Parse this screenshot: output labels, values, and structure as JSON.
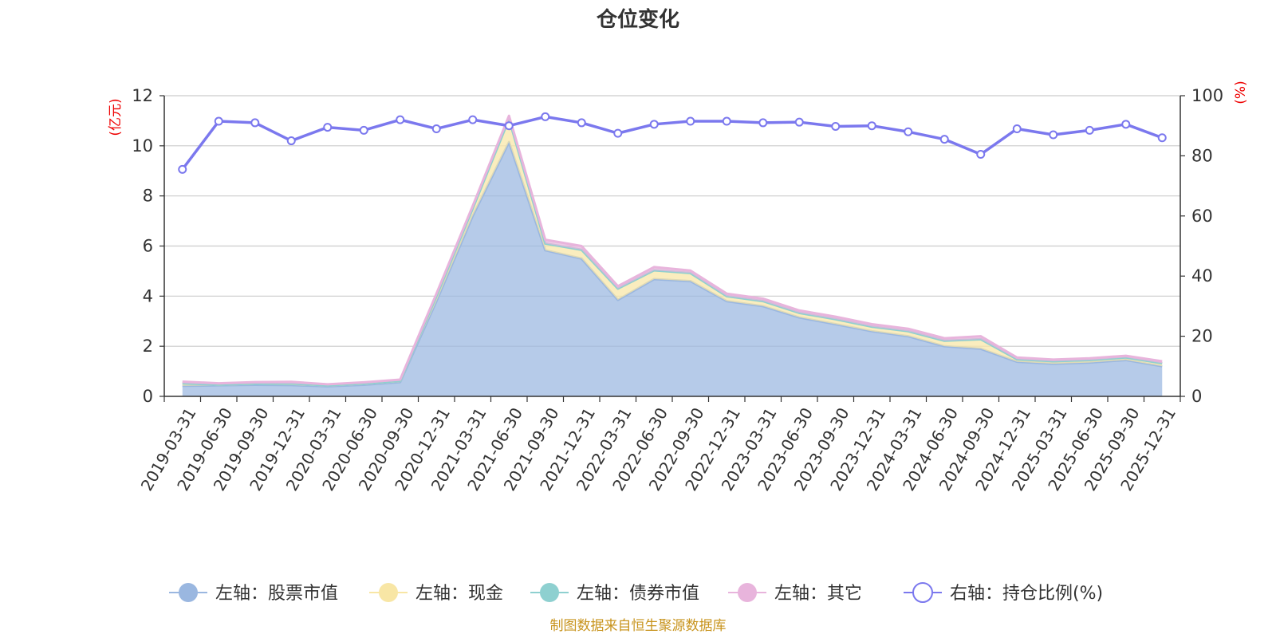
{
  "chart_data": {
    "type": "area",
    "title": "仓位变化",
    "left_axis_unit": "(亿元)",
    "right_axis_unit": "(%)",
    "ylim_left": [
      0,
      12
    ],
    "yticks_left": [
      0,
      2,
      4,
      6,
      8,
      10,
      12
    ],
    "ylim_right": [
      0,
      100
    ],
    "yticks_right": [
      0,
      20,
      40,
      60,
      80,
      100
    ],
    "categories": [
      "2019-03-31",
      "2019-06-30",
      "2019-09-30",
      "2019-12-31",
      "2020-03-31",
      "2020-06-30",
      "2020-09-30",
      "2020-12-31",
      "2021-03-31",
      "2021-06-30",
      "2021-09-30",
      "2021-12-31",
      "2022-03-31",
      "2022-06-30",
      "2022-09-30",
      "2022-12-31",
      "2023-03-31",
      "2023-06-30",
      "2023-09-30",
      "2023-12-31",
      "2024-03-31",
      "2024-06-30",
      "2024-09-30",
      "2024-12-31",
      "2025-03-31",
      "2025-06-30",
      "2025-09-30",
      "2025-12-31"
    ],
    "series": [
      {
        "name": "左轴：股票市值",
        "axis": "left",
        "stack": true,
        "color": "#9ab7e0",
        "values": [
          0.42,
          0.44,
          0.46,
          0.45,
          0.4,
          0.46,
          0.57,
          3.8,
          7.2,
          10.15,
          5.83,
          5.5,
          3.85,
          4.68,
          4.6,
          3.8,
          3.6,
          3.15,
          2.88,
          2.6,
          2.4,
          2.0,
          1.9,
          1.38,
          1.3,
          1.35,
          1.45,
          1.2
        ]
      },
      {
        "name": "左轴：现金",
        "axis": "left",
        "stack": true,
        "color": "#f8e6a5",
        "values": [
          0.1,
          0.03,
          0.05,
          0.06,
          0.04,
          0.05,
          0.05,
          0.2,
          0.3,
          0.92,
          0.27,
          0.35,
          0.45,
          0.35,
          0.32,
          0.2,
          0.2,
          0.18,
          0.2,
          0.18,
          0.2,
          0.22,
          0.38,
          0.1,
          0.1,
          0.1,
          0.1,
          0.12
        ]
      },
      {
        "name": "左轴：债券市值",
        "axis": "left",
        "stack": true,
        "color": "#8ed0d0",
        "values": [
          0,
          0,
          0,
          0,
          0,
          0,
          0,
          0,
          0,
          0,
          0,
          0,
          0,
          0,
          0,
          0,
          0,
          0,
          0,
          0,
          0,
          0,
          0,
          0,
          0,
          0,
          0,
          0
        ]
      },
      {
        "name": "左轴：其它",
        "axis": "left",
        "stack": true,
        "color": "#e8b4dc",
        "values": [
          0.07,
          0.05,
          0.06,
          0.07,
          0.04,
          0.05,
          0.05,
          0.1,
          0.1,
          0.13,
          0.15,
          0.15,
          0.1,
          0.13,
          0.1,
          0.1,
          0.1,
          0.1,
          0.1,
          0.1,
          0.1,
          0.1,
          0.12,
          0.07,
          0.07,
          0.07,
          0.07,
          0.08
        ]
      },
      {
        "name": "右轴：持仓比例(%)",
        "axis": "right",
        "type": "line",
        "color": "#7b78ee",
        "values": [
          75.5,
          91.5,
          91,
          85,
          89.5,
          88.5,
          92,
          89,
          92,
          90,
          93,
          91,
          87.5,
          90.5,
          91.5,
          91.5,
          91,
          91.2,
          89.8,
          90,
          88,
          85.5,
          80.5,
          89,
          87,
          88.5,
          90.5,
          86
        ]
      }
    ],
    "legend_position": "bottom",
    "grid": true
  },
  "footer": {
    "source": "制图数据来自恒生聚源数据库"
  }
}
